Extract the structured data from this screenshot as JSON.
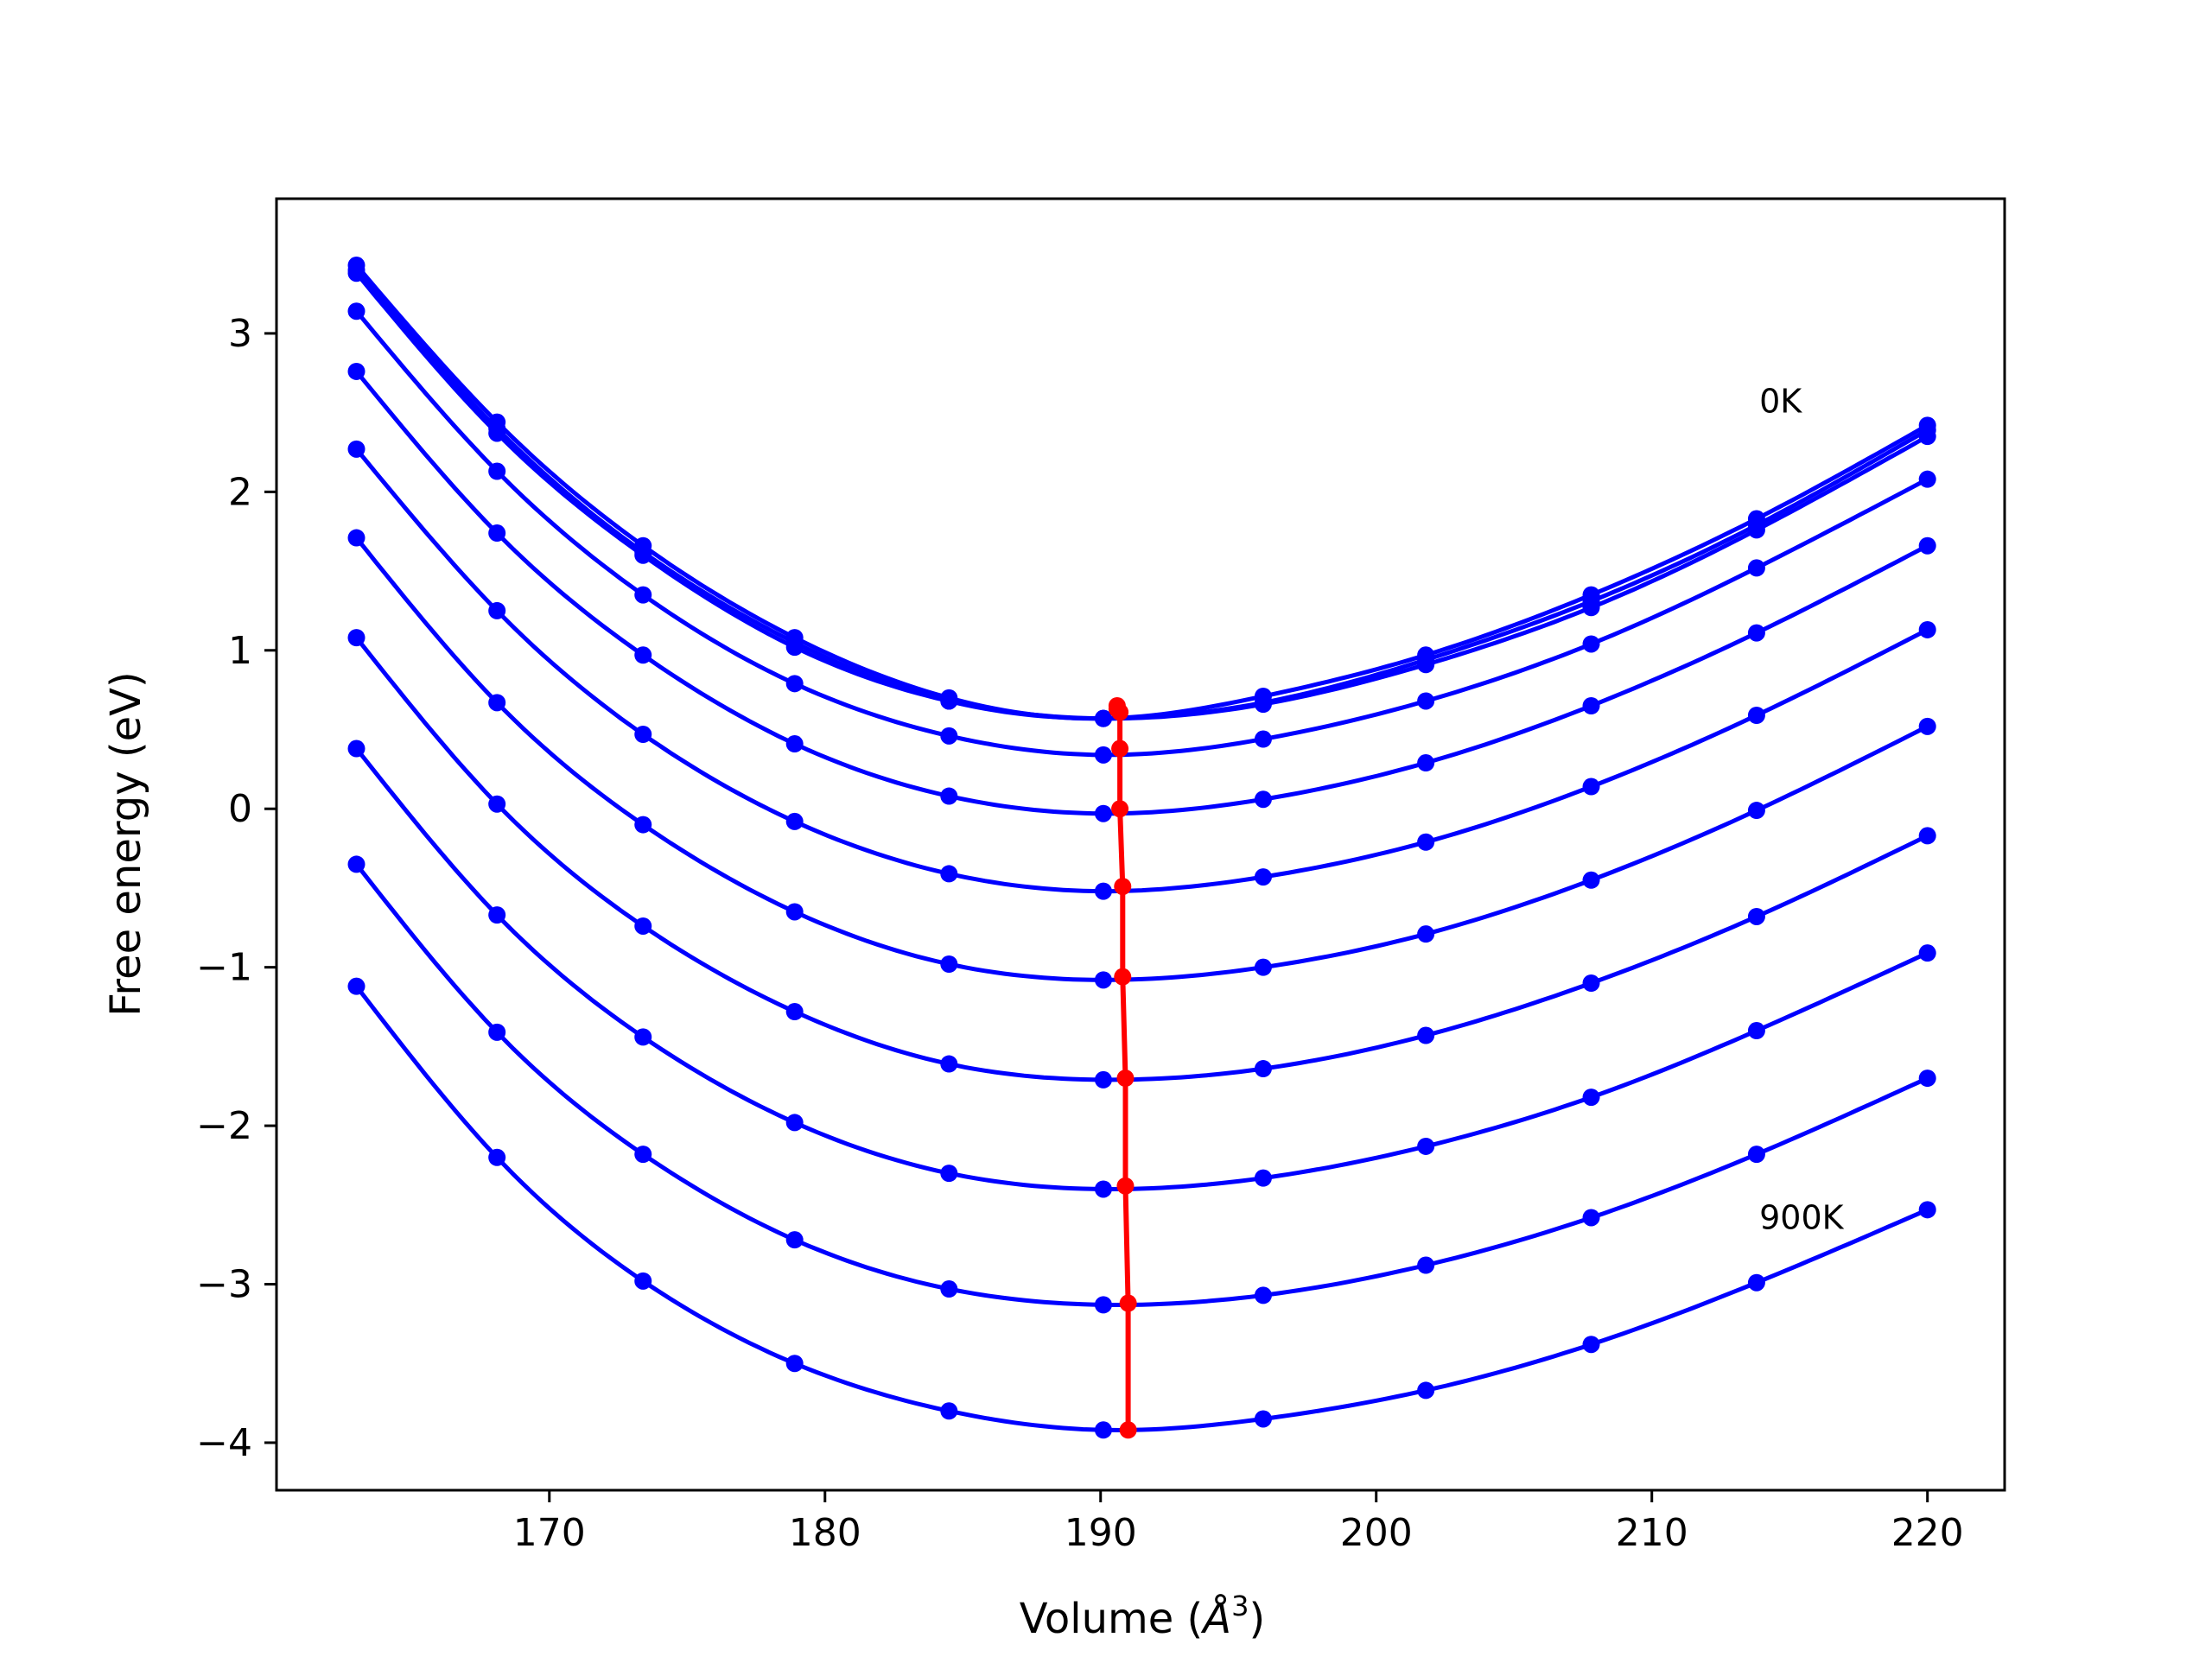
{
  "chart_data": {
    "type": "line",
    "title": "",
    "xlabel_main": "Volume (",
    "xlabel_unit": "Å",
    "xlabel_sup": "3",
    "xlabel_tail": ")",
    "ylabel": "Free energy (eV)",
    "xlim": [
      160.1,
      222.8
    ],
    "ylim": [
      -4.3,
      3.85
    ],
    "x_ticks": [
      170,
      180,
      190,
      200,
      210,
      220
    ],
    "x_tick_labels": [
      "170",
      "180",
      "190",
      "200",
      "210",
      "220"
    ],
    "y_ticks": [
      -4,
      -3,
      -2,
      -1,
      0,
      1,
      2,
      3
    ],
    "y_tick_labels": [
      "−4",
      "−3",
      "−2",
      "−1",
      "0",
      "1",
      "2",
      "3"
    ],
    "grid": false,
    "legend": "none",
    "colors": {
      "curves": "#0000ff",
      "minima": "#ff0000",
      "frame": "#000000"
    },
    "volumes": [
      163.0,
      168.1,
      173.4,
      178.9,
      184.5,
      190.1,
      195.9,
      201.8,
      207.8,
      213.8,
      220.0
    ],
    "series": [
      {
        "values": [
          3.43,
          2.44,
          1.66,
          1.08,
          0.7,
          0.57,
          0.71,
          0.97,
          1.35,
          1.83,
          2.42
        ],
        "minimum": [
          190.6,
          0.65
        ]
      },
      {
        "values": [
          3.4,
          2.4,
          1.62,
          1.05,
          0.68,
          0.57,
          0.67,
          0.94,
          1.31,
          1.79,
          2.39
        ],
        "minimum": [
          190.6,
          0.63
        ]
      },
      {
        "values": [
          3.38,
          2.37,
          1.6,
          1.02,
          0.68,
          0.57,
          0.66,
          0.91,
          1.27,
          1.76,
          2.35
        ],
        "minimum": [
          190.7,
          0.61
        ]
      },
      {
        "values": [
          3.14,
          2.13,
          1.35,
          0.79,
          0.46,
          0.34,
          0.44,
          0.68,
          1.04,
          1.52,
          2.08
        ],
        "minimum": [
          190.7,
          0.38
        ]
      },
      {
        "values": [
          2.76,
          1.74,
          0.97,
          0.41,
          0.08,
          -0.03,
          0.06,
          0.29,
          0.65,
          1.11,
          1.66
        ],
        "minimum": [
          190.7,
          0.0
        ]
      },
      {
        "values": [
          2.27,
          1.25,
          0.47,
          -0.08,
          -0.41,
          -0.52,
          -0.43,
          -0.21,
          0.14,
          0.59,
          1.13
        ],
        "minimum": [
          190.8,
          -0.49
        ]
      },
      {
        "values": [
          1.71,
          0.67,
          -0.1,
          -0.65,
          -0.98,
          -1.08,
          -1.0,
          -0.79,
          -0.45,
          -0.01,
          0.52
        ],
        "minimum": [
          190.8,
          -1.06
        ]
      },
      {
        "values": [
          1.08,
          0.03,
          -0.74,
          -1.28,
          -1.61,
          -1.71,
          -1.64,
          -1.43,
          -1.1,
          -0.68,
          -0.17
        ],
        "minimum": [
          190.9,
          -1.7
        ]
      },
      {
        "values": [
          0.38,
          -0.67,
          -1.44,
          -1.98,
          -2.3,
          -2.4,
          -2.33,
          -2.13,
          -1.82,
          -1.4,
          -0.91
        ],
        "minimum": [
          190.9,
          -2.38
        ]
      },
      {
        "values": [
          -0.35,
          -1.41,
          -2.18,
          -2.72,
          -3.03,
          -3.13,
          -3.07,
          -2.88,
          -2.58,
          -2.18,
          -1.7
        ],
        "minimum": [
          191.0,
          -3.12
        ]
      },
      {
        "values": [
          -1.12,
          -2.2,
          -2.98,
          -3.5,
          -3.8,
          -3.92,
          -3.85,
          -3.67,
          -3.38,
          -2.99,
          -2.53
        ],
        "minimum": [
          191.0,
          -3.92
        ]
      }
    ],
    "annotations": [
      {
        "text": "0K",
        "x": 213.9,
        "y": 2.5
      },
      {
        "text": "900K",
        "x": 213.9,
        "y": -2.65
      }
    ]
  }
}
